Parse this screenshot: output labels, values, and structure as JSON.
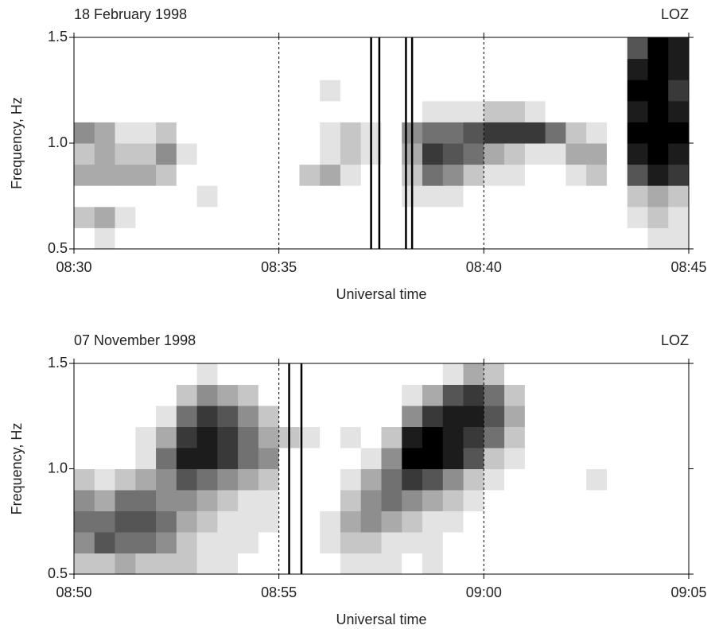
{
  "chart_data": [
    {
      "type": "heatmap",
      "title": "18 February 1998",
      "annotations": [
        "LOZ"
      ],
      "x_label": "Universal time",
      "y_label": "Frequency, Hz",
      "xlim": [
        510,
        525
      ],
      "xticks": [
        {
          "value": 510,
          "label": "08:30"
        },
        {
          "value": 515,
          "label": "08:35"
        },
        {
          "value": 520,
          "label": "08:40"
        },
        {
          "value": 525,
          "label": "08:45"
        }
      ],
      "ylim": [
        0.5,
        1.5
      ],
      "yticks": [
        0.5,
        {
          "value": 1.0,
          "label": "1.0"
        },
        1.5
      ],
      "grid": true,
      "grid_style": "dashed",
      "color": "#000000",
      "markers": [
        517.25,
        517.45,
        518.1,
        518.25
      ],
      "z": [
        [
          0,
          1,
          0,
          0,
          0,
          0,
          0,
          0,
          0,
          0,
          0,
          0,
          0,
          0,
          0,
          0,
          0,
          0,
          0,
          0,
          0,
          0,
          0,
          0,
          0,
          0,
          0,
          0,
          1,
          1
        ],
        [
          2,
          3,
          1,
          0,
          0,
          0,
          0,
          0,
          0,
          0,
          0,
          0,
          0,
          0,
          0,
          0,
          0,
          0,
          0,
          0,
          0,
          0,
          0,
          0,
          0,
          0,
          0,
          1,
          2,
          1
        ],
        [
          0,
          0,
          0,
          0,
          0,
          0,
          1,
          0,
          0,
          0,
          0,
          0,
          0,
          0,
          0,
          0,
          1,
          1,
          1,
          0,
          0,
          0,
          0,
          0,
          0,
          0,
          0,
          2,
          3,
          2
        ],
        [
          3,
          3,
          3,
          3,
          2,
          0,
          0,
          0,
          0,
          0,
          0,
          2,
          3,
          1,
          0,
          0,
          2,
          5,
          4,
          2,
          1,
          1,
          0,
          0,
          1,
          2,
          0,
          6,
          8,
          7
        ],
        [
          2,
          3,
          2,
          2,
          4,
          1,
          0,
          0,
          0,
          0,
          0,
          0,
          1,
          2,
          1,
          0,
          3,
          7,
          6,
          5,
          3,
          2,
          1,
          1,
          3,
          3,
          0,
          8,
          9,
          8
        ],
        [
          4,
          3,
          1,
          1,
          2,
          0,
          0,
          0,
          0,
          0,
          0,
          0,
          1,
          2,
          1,
          0,
          4,
          5,
          5,
          6,
          7,
          7,
          7,
          5,
          2,
          1,
          0,
          9,
          9,
          9
        ],
        [
          0,
          0,
          0,
          0,
          0,
          0,
          0,
          0,
          0,
          0,
          0,
          0,
          0,
          0,
          0,
          0,
          0,
          1,
          1,
          1,
          2,
          2,
          1,
          0,
          0,
          0,
          0,
          8,
          9,
          8
        ],
        [
          0,
          0,
          0,
          0,
          0,
          0,
          0,
          0,
          0,
          0,
          0,
          0,
          1,
          0,
          0,
          0,
          0,
          0,
          0,
          0,
          0,
          0,
          0,
          0,
          0,
          0,
          0,
          9,
          9,
          7
        ],
        [
          0,
          0,
          0,
          0,
          0,
          0,
          0,
          0,
          0,
          0,
          0,
          0,
          0,
          0,
          0,
          0,
          0,
          0,
          0,
          0,
          0,
          0,
          0,
          0,
          0,
          0,
          0,
          8,
          9,
          8
        ],
        [
          0,
          0,
          0,
          0,
          0,
          0,
          0,
          0,
          0,
          0,
          0,
          0,
          0,
          0,
          0,
          0,
          0,
          0,
          0,
          0,
          0,
          0,
          0,
          0,
          0,
          0,
          0,
          6,
          9,
          8
        ]
      ]
    },
    {
      "type": "heatmap",
      "title": "07 November 1998",
      "annotations": [
        "LOZ"
      ],
      "x_label": "Universal time",
      "y_label": "Frequency, Hz",
      "xlim": [
        530,
        545
      ],
      "xticks": [
        {
          "value": 530,
          "label": "08:50"
        },
        {
          "value": 535,
          "label": "08:55"
        },
        {
          "value": 540,
          "label": "09:00"
        },
        {
          "value": 545,
          "label": "09:05"
        }
      ],
      "ylim": [
        0.5,
        1.5
      ],
      "yticks": [
        0.5,
        {
          "value": 1.0,
          "label": "1.0"
        },
        1.5
      ],
      "grid": true,
      "grid_style": "dashed",
      "color": "#000000",
      "markers": [
        535.25,
        535.55
      ],
      "z": [
        [
          2,
          2,
          3,
          2,
          2,
          2,
          1,
          1,
          0,
          0,
          0,
          0,
          0,
          1,
          1,
          1,
          0,
          1,
          0,
          0,
          0,
          0,
          0,
          0,
          0,
          0,
          0,
          0,
          0,
          0
        ],
        [
          4,
          6,
          5,
          5,
          4,
          2,
          1,
          1,
          1,
          0,
          0,
          0,
          1,
          2,
          2,
          1,
          1,
          1,
          0,
          0,
          0,
          0,
          0,
          0,
          0,
          0,
          0,
          0,
          0,
          0
        ],
        [
          5,
          5,
          6,
          6,
          5,
          3,
          2,
          1,
          1,
          1,
          0,
          0,
          1,
          3,
          4,
          3,
          2,
          1,
          1,
          0,
          0,
          0,
          0,
          0,
          0,
          0,
          0,
          0,
          0,
          0
        ],
        [
          4,
          3,
          5,
          5,
          4,
          4,
          3,
          2,
          1,
          1,
          0,
          0,
          0,
          2,
          4,
          5,
          4,
          3,
          2,
          1,
          0,
          0,
          0,
          0,
          0,
          0,
          0,
          0,
          0,
          0
        ],
        [
          2,
          1,
          2,
          3,
          4,
          6,
          5,
          4,
          3,
          2,
          0,
          0,
          0,
          1,
          3,
          5,
          7,
          6,
          4,
          2,
          1,
          0,
          0,
          0,
          0,
          1,
          0,
          0,
          0,
          0
        ],
        [
          0,
          0,
          0,
          1,
          5,
          8,
          8,
          7,
          5,
          4,
          0,
          0,
          0,
          0,
          1,
          4,
          9,
          9,
          8,
          6,
          2,
          1,
          0,
          0,
          0,
          0,
          0,
          0,
          0,
          0
        ],
        [
          0,
          0,
          0,
          1,
          3,
          7,
          8,
          7,
          5,
          3,
          2,
          1,
          0,
          1,
          0,
          2,
          8,
          9,
          8,
          7,
          5,
          2,
          0,
          0,
          0,
          0,
          0,
          0,
          0,
          0
        ],
        [
          0,
          0,
          0,
          0,
          1,
          5,
          7,
          6,
          4,
          2,
          0,
          0,
          0,
          0,
          0,
          0,
          4,
          7,
          8,
          8,
          6,
          3,
          0,
          0,
          0,
          0,
          0,
          0,
          0,
          0
        ],
        [
          0,
          0,
          0,
          0,
          0,
          2,
          4,
          3,
          2,
          0,
          0,
          0,
          0,
          0,
          0,
          0,
          1,
          3,
          6,
          7,
          5,
          2,
          0,
          0,
          0,
          0,
          0,
          0,
          0,
          0
        ],
        [
          0,
          0,
          0,
          0,
          0,
          0,
          1,
          0,
          0,
          0,
          0,
          0,
          0,
          0,
          0,
          0,
          0,
          0,
          1,
          3,
          2,
          0,
          0,
          0,
          0,
          0,
          0,
          0,
          0,
          0
        ]
      ]
    }
  ]
}
